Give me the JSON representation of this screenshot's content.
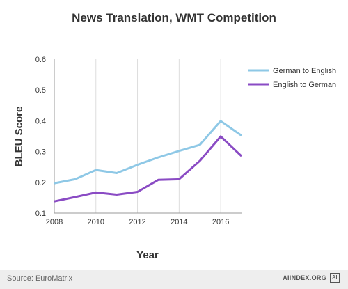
{
  "chart_data": {
    "type": "line",
    "title": "News Translation, WMT Competition",
    "xlabel": "Year",
    "ylabel": "BLEU Score",
    "x": [
      2008,
      2009,
      2010,
      2011,
      2012,
      2013,
      2014,
      2015,
      2016,
      2017
    ],
    "xlim": [
      2008,
      2017
    ],
    "ylim": [
      0.1,
      0.6
    ],
    "x_ticks": [
      "2008",
      "2010",
      "2012",
      "2014",
      "2016"
    ],
    "y_ticks": [
      "0.1",
      "0.2",
      "0.3",
      "0.4",
      "0.5",
      "0.6"
    ],
    "grid": "vertical",
    "legend": "right",
    "series": [
      {
        "name": "German to English",
        "color": "#8ec8e6",
        "values": [
          0.197,
          0.21,
          0.24,
          0.23,
          0.257,
          0.281,
          0.302,
          0.322,
          0.399,
          0.352
        ]
      },
      {
        "name": "English to German",
        "color": "#8a4bc4",
        "values": [
          0.138,
          0.152,
          0.167,
          0.16,
          0.169,
          0.208,
          0.21,
          0.27,
          0.349,
          0.285
        ]
      }
    ]
  },
  "footer": {
    "source": "Source: EuroMatrix",
    "brand": "AIINDEX.ORG",
    "brand_logo_text": "AI"
  }
}
